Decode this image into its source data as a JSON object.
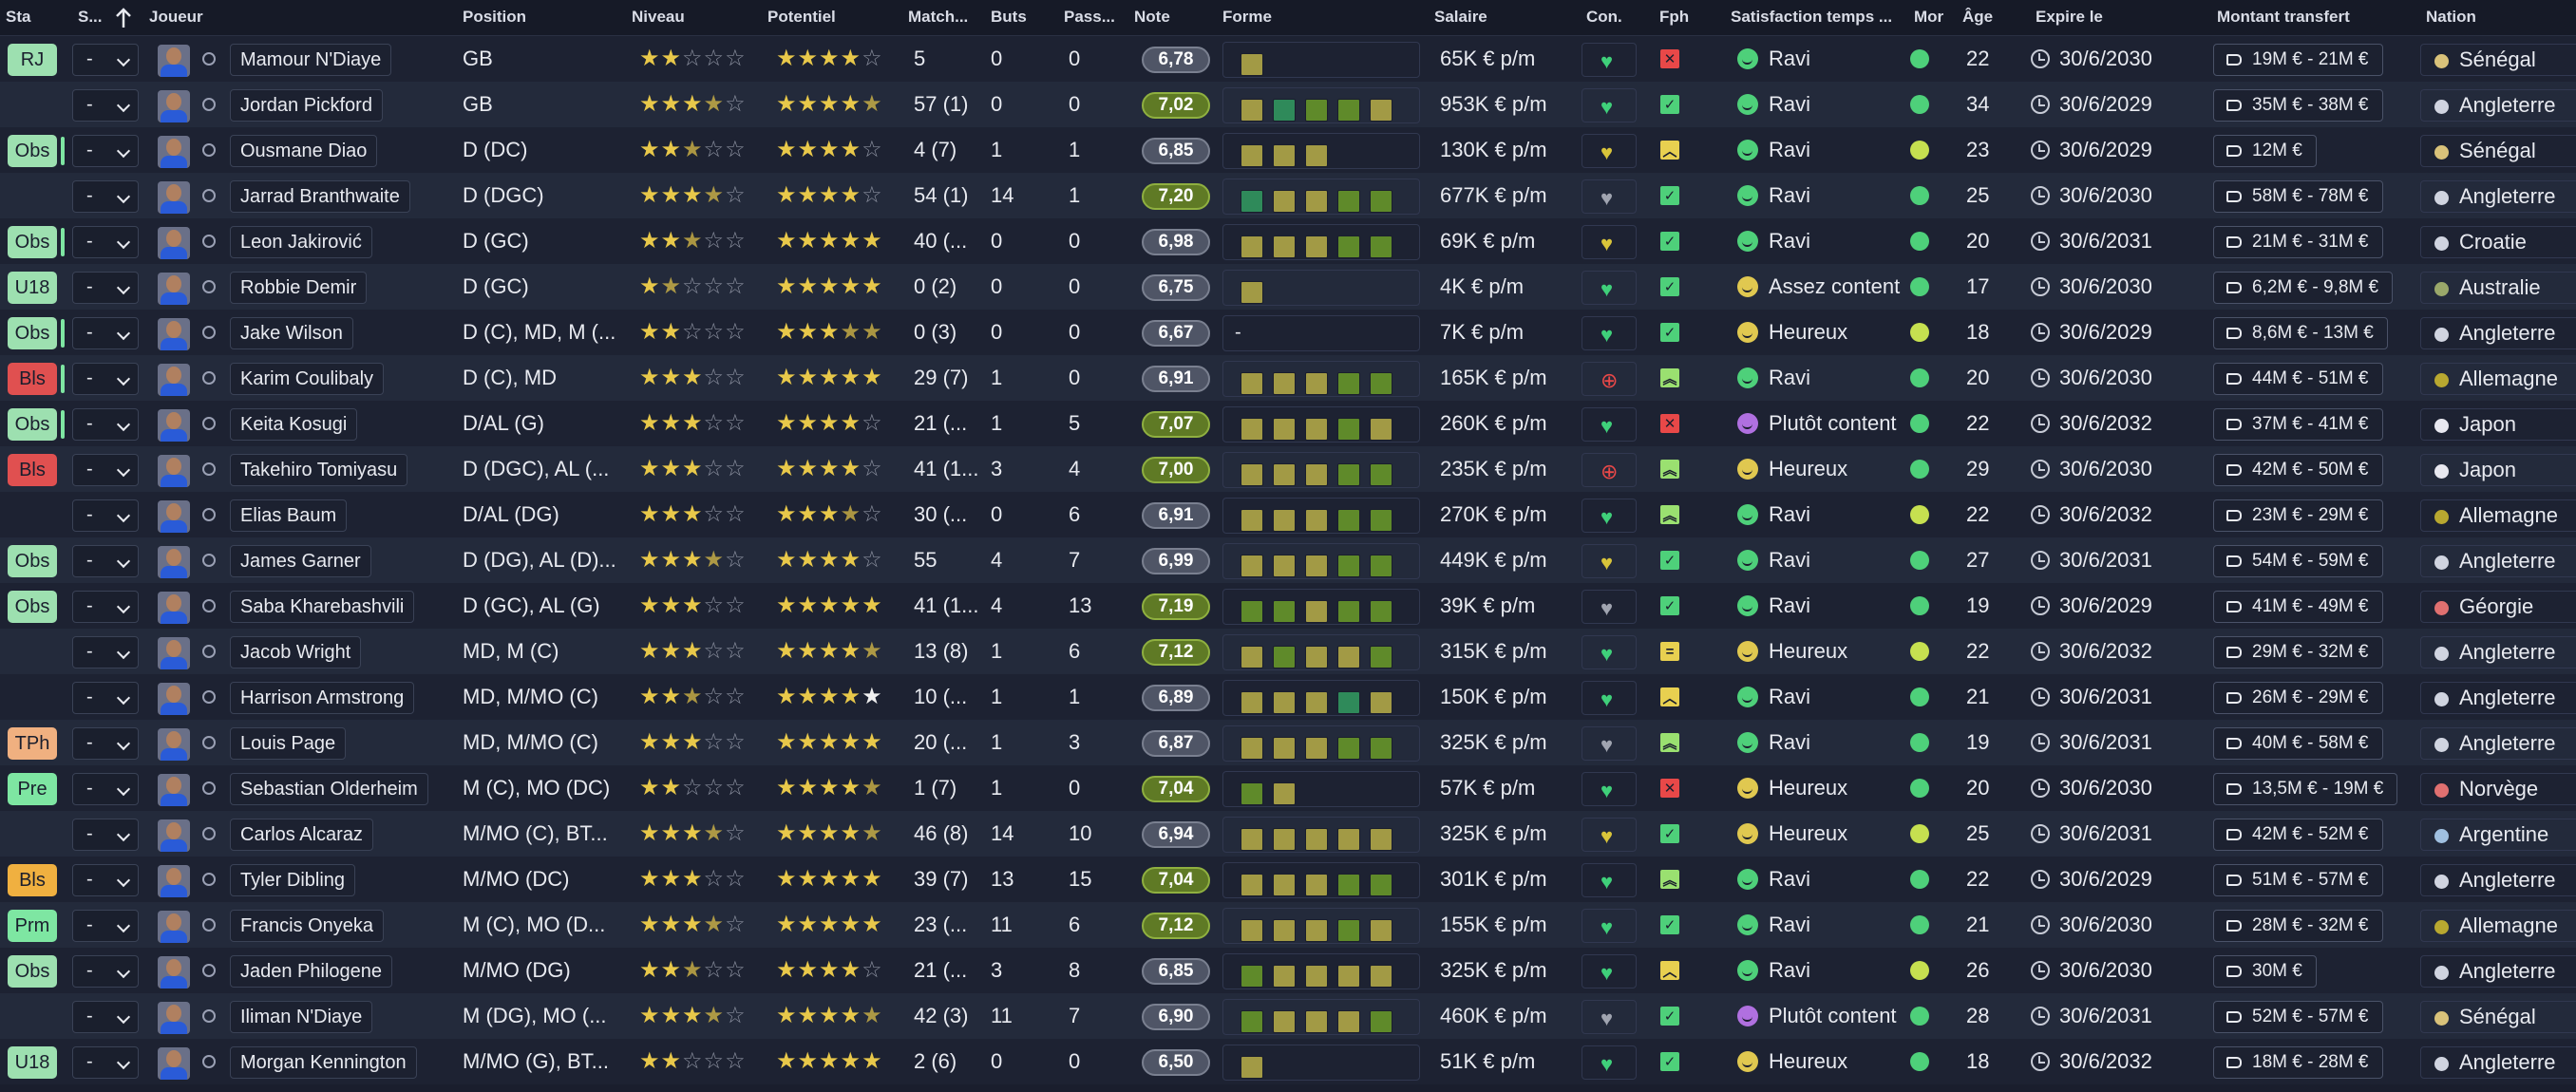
{
  "headers": {
    "sta": "Sta",
    "s": "S...",
    "joueur": "Joueur",
    "position": "Position",
    "niveau": "Niveau",
    "potentiel": "Potentiel",
    "match": "Match...",
    "buts": "Buts",
    "pass": "Pass...",
    "note": "Note",
    "forme": "Forme",
    "salaire": "Salaire",
    "con": "Con.",
    "fph": "Fph",
    "satisfaction": "Satisfaction temps ...",
    "mor": "Mor",
    "age": "Âge",
    "expire": "Expire le",
    "montant": "Montant transfert",
    "nation": "Nation"
  },
  "colors": {
    "sq_green": "#2f8a5a",
    "sq_olive": "#a29a45",
    "sq_lime": "#5f8a2a",
    "note_green": "#5f7a25",
    "note_grey": "#4f5566"
  },
  "players": [
    {
      "status": "RJ",
      "statusColor": "#9de0b0",
      "bar": false,
      "sel": "-",
      "name": "Mamour N'Diaye",
      "position": "GB",
      "niveau": [
        2,
        0,
        3
      ],
      "potentiel": [
        4,
        0,
        1
      ],
      "potW": false,
      "matches": "5",
      "buts": "0",
      "passes": "0",
      "note": "6,78",
      "noteC": "grey",
      "form": [
        "o"
      ],
      "salaire": "65K € p/m",
      "con": "green",
      "fph": "x",
      "sat": "Ravi",
      "satC": "green",
      "mor": "up",
      "age": "22",
      "expire": "30/6/2030",
      "montant": "19M € - 21M €",
      "nation": "Sénégal",
      "flag": "#d9c27a"
    },
    {
      "status": "",
      "statusColor": "",
      "bar": false,
      "sel": "-",
      "name": "Jordan Pickford",
      "position": "GB",
      "niveau": [
        3,
        1,
        1
      ],
      "potentiel": [
        4,
        1,
        0
      ],
      "potW": false,
      "matches": "57 (1)",
      "buts": "0",
      "passes": "0",
      "note": "7,02",
      "noteC": "green",
      "form": [
        "o",
        "g",
        "l",
        "l",
        "o"
      ],
      "salaire": "953K € p/m",
      "con": "green",
      "fph": "ok",
      "sat": "Ravi",
      "satC": "green",
      "mor": "up",
      "age": "34",
      "expire": "30/6/2029",
      "montant": "35M € - 38M €",
      "nation": "Angleterre",
      "flag": "#d0d4e0"
    },
    {
      "status": "Obs",
      "statusColor": "#9de0b0",
      "bar": true,
      "sel": "-",
      "name": "Ousmane Diao",
      "position": "D (DC)",
      "niveau": [
        2,
        1,
        2
      ],
      "potentiel": [
        4,
        0,
        1
      ],
      "potW": false,
      "matches": "4 (7)",
      "buts": "1",
      "passes": "1",
      "note": "6,85",
      "noteC": "grey",
      "form": [
        "o",
        "o",
        "o"
      ],
      "salaire": "130K € p/m",
      "con": "yellow",
      "fph": "up",
      "sat": "Ravi",
      "satC": "green",
      "mor": "flat",
      "age": "23",
      "expire": "30/6/2029",
      "montant": "12M €",
      "nation": "Sénégal",
      "flag": "#d9c27a"
    },
    {
      "status": "",
      "statusColor": "",
      "bar": false,
      "sel": "-",
      "name": "Jarrad Branthwaite",
      "position": "D (DGC)",
      "niveau": [
        3,
        1,
        1
      ],
      "potentiel": [
        4,
        0,
        1
      ],
      "potW": false,
      "matches": "54 (1)",
      "buts": "14",
      "passes": "1",
      "note": "7,20",
      "noteC": "green",
      "form": [
        "g",
        "o",
        "o",
        "l",
        "l"
      ],
      "salaire": "677K € p/m",
      "con": "grey",
      "fph": "ok",
      "sat": "Ravi",
      "satC": "green",
      "mor": "up",
      "age": "25",
      "expire": "30/6/2030",
      "montant": "58M € - 78M €",
      "nation": "Angleterre",
      "flag": "#d0d4e0"
    },
    {
      "status": "Obs",
      "statusColor": "#9de0b0",
      "bar": true,
      "sel": "-",
      "name": "Leon Jakirović",
      "position": "D (GC)",
      "niveau": [
        2,
        1,
        2
      ],
      "potentiel": [
        5,
        0,
        0
      ],
      "potW": true,
      "matches": "40 (...",
      "buts": "0",
      "passes": "0",
      "note": "6,98",
      "noteC": "grey",
      "form": [
        "o",
        "o",
        "o",
        "l",
        "l"
      ],
      "salaire": "69K € p/m",
      "con": "yellow",
      "fph": "ok",
      "sat": "Ravi",
      "satC": "green",
      "mor": "up",
      "age": "20",
      "expire": "30/6/2031",
      "montant": "21M € - 31M €",
      "nation": "Croatie",
      "flag": "#d0d4e0"
    },
    {
      "status": "U18",
      "statusColor": "#9de0b0",
      "bar": false,
      "sel": "-",
      "name": "Robbie Demir",
      "position": "D (GC)",
      "niveau": [
        1,
        1,
        3
      ],
      "potentiel": [
        5,
        0,
        0
      ],
      "potW": true,
      "matches": "0 (2)",
      "buts": "0",
      "passes": "0",
      "note": "6,75",
      "noteC": "grey",
      "form": [
        "o"
      ],
      "salaire": "4K € p/m",
      "con": "green",
      "fph": "ok",
      "sat": "Assez content",
      "satC": "yellow",
      "mor": "up",
      "age": "17",
      "expire": "30/6/2030",
      "montant": "6,2M € - 9,8M €",
      "nation": "Australie",
      "flag": "#9aa86a"
    },
    {
      "status": "Obs",
      "statusColor": "#9de0b0",
      "bar": true,
      "sel": "-",
      "name": "Jake Wilson",
      "position": "D (C), MD, M (...",
      "niveau": [
        2,
        0,
        3
      ],
      "potentiel": [
        3,
        2,
        0
      ],
      "potW": true,
      "matches": "0 (3)",
      "buts": "0",
      "passes": "0",
      "note": "6,67",
      "noteC": "grey",
      "form": [],
      "formDash": "-",
      "salaire": "7K € p/m",
      "con": "green",
      "fph": "ok",
      "sat": "Heureux",
      "satC": "yellow",
      "mor": "flat",
      "age": "18",
      "expire": "30/6/2029",
      "montant": "8,6M € - 13M €",
      "nation": "Angleterre",
      "flag": "#d0d4e0"
    },
    {
      "status": "Bls",
      "statusColor": "#e05050",
      "bar": true,
      "sel": "-",
      "name": "Karim Coulibaly",
      "position": "D (C), MD",
      "niveau": [
        3,
        0,
        2
      ],
      "potentiel": [
        5,
        0,
        0
      ],
      "potW": true,
      "matches": "29 (7)",
      "buts": "1",
      "passes": "0",
      "note": "6,91",
      "noteC": "grey",
      "form": [
        "o",
        "o",
        "o",
        "l",
        "l"
      ],
      "salaire": "165K € p/m",
      "con": "red",
      "fph": "up2",
      "sat": "Ravi",
      "satC": "green",
      "mor": "up",
      "age": "20",
      "expire": "30/6/2030",
      "montant": "44M € - 51M €",
      "nation": "Allemagne",
      "flag": "#b8a830"
    },
    {
      "status": "Obs",
      "statusColor": "#9de0b0",
      "bar": true,
      "sel": "-",
      "name": "Keita Kosugi",
      "position": "D/AL (G)",
      "niveau": [
        3,
        0,
        2
      ],
      "potentiel": [
        4,
        0,
        1
      ],
      "potW": false,
      "matches": "21 (...",
      "buts": "1",
      "passes": "5",
      "note": "7,07",
      "noteC": "green",
      "form": [
        "o",
        "o",
        "o",
        "l",
        "o"
      ],
      "salaire": "260K € p/m",
      "con": "green",
      "fph": "x",
      "sat": "Plutôt content",
      "satC": "purple",
      "mor": "up",
      "age": "22",
      "expire": "30/6/2032",
      "montant": "37M € - 41M €",
      "nation": "Japon",
      "flag": "#e8e8f0"
    },
    {
      "status": "Bls",
      "statusColor": "#e05050",
      "bar": false,
      "sel": "-",
      "name": "Takehiro Tomiyasu",
      "position": "D (DGC), AL (...",
      "niveau": [
        3,
        0,
        2
      ],
      "potentiel": [
        4,
        0,
        1
      ],
      "potW": false,
      "matches": "41 (1...",
      "buts": "3",
      "passes": "4",
      "note": "7,00",
      "noteC": "green",
      "form": [
        "o",
        "o",
        "o",
        "l",
        "l"
      ],
      "salaire": "235K € p/m",
      "con": "red",
      "fph": "up2",
      "sat": "Heureux",
      "satC": "yellow",
      "mor": "up",
      "age": "29",
      "expire": "30/6/2030",
      "montant": "42M € - 50M €",
      "nation": "Japon",
      "flag": "#e8e8f0"
    },
    {
      "status": "",
      "statusColor": "",
      "bar": false,
      "sel": "-",
      "name": "Elias Baum",
      "position": "D/AL (DG)",
      "niveau": [
        3,
        0,
        2
      ],
      "potentiel": [
        3,
        1,
        1
      ],
      "potW": false,
      "matches": "30 (...",
      "buts": "0",
      "passes": "6",
      "note": "6,91",
      "noteC": "grey",
      "form": [
        "o",
        "o",
        "o",
        "l",
        "l"
      ],
      "salaire": "270K € p/m",
      "con": "green",
      "fph": "up2",
      "sat": "Ravi",
      "satC": "green",
      "mor": "flat",
      "age": "22",
      "expire": "30/6/2032",
      "montant": "23M € - 29M €",
      "nation": "Allemagne",
      "flag": "#b8a830"
    },
    {
      "status": "Obs",
      "statusColor": "#9de0b0",
      "bar": false,
      "sel": "-",
      "name": "James Garner",
      "position": "D (DG), AL (D)...",
      "niveau": [
        3,
        1,
        1
      ],
      "potentiel": [
        4,
        0,
        1
      ],
      "potW": false,
      "matches": "55",
      "buts": "4",
      "passes": "7",
      "note": "6,99",
      "noteC": "grey",
      "form": [
        "o",
        "o",
        "o",
        "l",
        "l"
      ],
      "salaire": "449K € p/m",
      "con": "yellow",
      "fph": "ok",
      "sat": "Ravi",
      "satC": "green",
      "mor": "up",
      "age": "27",
      "expire": "30/6/2031",
      "montant": "54M € - 59M €",
      "nation": "Angleterre",
      "flag": "#d0d4e0"
    },
    {
      "status": "Obs",
      "statusColor": "#9de0b0",
      "bar": false,
      "sel": "-",
      "name": "Saba Kharebashvili",
      "position": "D (GC), AL (G)",
      "niveau": [
        3,
        0,
        2
      ],
      "potentiel": [
        5,
        0,
        0
      ],
      "potW": true,
      "matches": "41 (1...",
      "buts": "4",
      "passes": "13",
      "note": "7,19",
      "noteC": "green",
      "form": [
        "l",
        "l",
        "o",
        "l",
        "l"
      ],
      "salaire": "39K € p/m",
      "con": "grey",
      "fph": "ok",
      "sat": "Ravi",
      "satC": "green",
      "mor": "up",
      "age": "19",
      "expire": "30/6/2029",
      "montant": "41M € - 49M €",
      "nation": "Géorgie",
      "flag": "#e07070"
    },
    {
      "status": "",
      "statusColor": "",
      "bar": false,
      "sel": "-",
      "name": "Jacob Wright",
      "position": "MD, M (C)",
      "niveau": [
        3,
        0,
        2
      ],
      "potentiel": [
        4,
        1,
        0
      ],
      "potW": false,
      "matches": "13 (8)",
      "buts": "1",
      "passes": "6",
      "note": "7,12",
      "noteC": "green",
      "form": [
        "o",
        "l",
        "o",
        "o",
        "l"
      ],
      "salaire": "315K € p/m",
      "con": "green",
      "fph": "eq",
      "sat": "Heureux",
      "satC": "yellow",
      "mor": "flat",
      "age": "22",
      "expire": "30/6/2032",
      "montant": "29M € - 32M €",
      "nation": "Angleterre",
      "flag": "#d0d4e0"
    },
    {
      "status": "",
      "statusColor": "",
      "bar": false,
      "sel": "-",
      "name": "Harrison Armstrong",
      "position": "MD, M/MO (C)",
      "niveau": [
        2,
        1,
        2
      ],
      "potentiel": [
        4,
        0,
        1
      ],
      "potW": true,
      "matches": "10 (...",
      "buts": "1",
      "passes": "1",
      "note": "6,89",
      "noteC": "grey",
      "form": [
        "o",
        "o",
        "o",
        "g",
        "o"
      ],
      "salaire": "150K € p/m",
      "con": "green",
      "fph": "up",
      "sat": "Ravi",
      "satC": "green",
      "mor": "up",
      "age": "21",
      "expire": "30/6/2031",
      "montant": "26M € - 29M €",
      "nation": "Angleterre",
      "flag": "#d0d4e0"
    },
    {
      "status": "TPh",
      "statusColor": "#f0b080",
      "bar": false,
      "sel": "-",
      "name": "Louis Page",
      "position": "MD, M/MO (C)",
      "niveau": [
        3,
        0,
        2
      ],
      "potentiel": [
        5,
        0,
        0
      ],
      "potW": true,
      "matches": "20 (...",
      "buts": "1",
      "passes": "3",
      "note": "6,87",
      "noteC": "grey",
      "form": [
        "o",
        "o",
        "o",
        "l",
        "l"
      ],
      "salaire": "325K € p/m",
      "con": "grey",
      "fph": "up2",
      "sat": "Ravi",
      "satC": "green",
      "mor": "up",
      "age": "19",
      "expire": "30/6/2031",
      "montant": "40M € - 58M €",
      "nation": "Angleterre",
      "flag": "#d0d4e0"
    },
    {
      "status": "Pre",
      "statusColor": "#7ee6a2",
      "bar": false,
      "sel": "-",
      "name": "Sebastian Olderheim",
      "position": "M (C), MO (DC)",
      "niveau": [
        2,
        0,
        3
      ],
      "potentiel": [
        4,
        1,
        0
      ],
      "potW": true,
      "matches": "1 (7)",
      "buts": "1",
      "passes": "0",
      "note": "7,04",
      "noteC": "green",
      "form": [
        "l",
        "o"
      ],
      "salaire": "57K € p/m",
      "con": "green",
      "fph": "x",
      "sat": "Heureux",
      "satC": "yellow",
      "mor": "up",
      "age": "20",
      "expire": "30/6/2030",
      "montant": "13,5M € - 19M €",
      "nation": "Norvège",
      "flag": "#e07070"
    },
    {
      "status": "",
      "statusColor": "",
      "bar": false,
      "sel": "-",
      "name": "Carlos Alcaraz",
      "position": "M/MO (C), BT...",
      "niveau": [
        3,
        1,
        1
      ],
      "potentiel": [
        4,
        1,
        0
      ],
      "potW": false,
      "matches": "46 (8)",
      "buts": "14",
      "passes": "10",
      "note": "6,94",
      "noteC": "grey",
      "form": [
        "o",
        "o",
        "o",
        "o",
        "o"
      ],
      "salaire": "325K € p/m",
      "con": "yellow",
      "fph": "ok",
      "sat": "Heureux",
      "satC": "yellow",
      "mor": "flat",
      "age": "25",
      "expire": "30/6/2031",
      "montant": "42M € - 52M €",
      "nation": "Argentine",
      "flag": "#a0c0e0"
    },
    {
      "status": "Bls",
      "statusColor": "#f0b040",
      "bar": false,
      "sel": "-",
      "name": "Tyler Dibling",
      "position": "M/MO (DC)",
      "niveau": [
        3,
        0,
        2
      ],
      "potentiel": [
        5,
        0,
        0
      ],
      "potW": false,
      "matches": "39 (7)",
      "buts": "13",
      "passes": "15",
      "note": "7,04",
      "noteC": "green",
      "form": [
        "o",
        "o",
        "o",
        "l",
        "l"
      ],
      "salaire": "301K € p/m",
      "con": "green",
      "fph": "up2",
      "sat": "Ravi",
      "satC": "green",
      "mor": "up",
      "age": "22",
      "expire": "30/6/2029",
      "montant": "51M € - 57M €",
      "nation": "Angleterre",
      "flag": "#d0d4e0"
    },
    {
      "status": "Prm",
      "statusColor": "#7ee6a2",
      "bar": false,
      "sel": "-",
      "name": "Francis Onyeka",
      "position": "M (C), MO (D...",
      "niveau": [
        3,
        1,
        1
      ],
      "potentiel": [
        5,
        0,
        0
      ],
      "potW": true,
      "matches": "23 (...",
      "buts": "11",
      "passes": "6",
      "note": "7,12",
      "noteC": "green",
      "form": [
        "o",
        "o",
        "o",
        "l",
        "o"
      ],
      "salaire": "155K € p/m",
      "con": "green",
      "fph": "ok",
      "sat": "Ravi",
      "satC": "green",
      "mor": "up",
      "age": "21",
      "expire": "30/6/2030",
      "montant": "28M € - 32M €",
      "nation": "Allemagne",
      "flag": "#b8a830"
    },
    {
      "status": "Obs",
      "statusColor": "#9de0b0",
      "bar": false,
      "sel": "-",
      "name": "Jaden Philogene",
      "position": "M/MO (DG)",
      "niveau": [
        2,
        1,
        2
      ],
      "potentiel": [
        4,
        0,
        1
      ],
      "potW": false,
      "matches": "21 (...",
      "buts": "3",
      "passes": "8",
      "note": "6,85",
      "noteC": "grey",
      "form": [
        "l",
        "o",
        "o",
        "o",
        "o"
      ],
      "salaire": "325K € p/m",
      "con": "green",
      "fph": "up",
      "sat": "Ravi",
      "satC": "green",
      "mor": "flat",
      "age": "26",
      "expire": "30/6/2030",
      "montant": "30M €",
      "nation": "Angleterre",
      "flag": "#d0d4e0"
    },
    {
      "status": "",
      "statusColor": "",
      "bar": false,
      "sel": "-",
      "name": "Iliman N'Diaye",
      "position": "M (DG), MO (...",
      "niveau": [
        3,
        1,
        1
      ],
      "potentiel": [
        4,
        1,
        0
      ],
      "potW": false,
      "matches": "42 (3)",
      "buts": "11",
      "passes": "7",
      "note": "6,90",
      "noteC": "grey",
      "form": [
        "l",
        "o",
        "o",
        "o",
        "l"
      ],
      "salaire": "460K € p/m",
      "con": "grey",
      "fph": "ok",
      "sat": "Plutôt content",
      "satC": "purple",
      "mor": "up",
      "age": "28",
      "expire": "30/6/2031",
      "montant": "52M € - 57M €",
      "nation": "Sénégal",
      "flag": "#d9c27a"
    },
    {
      "status": "U18",
      "statusColor": "#9de0b0",
      "bar": false,
      "sel": "-",
      "name": "Morgan Kennington",
      "position": "M/MO (G), BT...",
      "niveau": [
        2,
        0,
        3
      ],
      "potentiel": [
        5,
        0,
        0
      ],
      "potW": false,
      "matches": "2 (6)",
      "buts": "0",
      "passes": "0",
      "note": "6,50",
      "noteC": "grey",
      "form": [
        "o"
      ],
      "salaire": "51K € p/m",
      "con": "green",
      "fph": "ok",
      "sat": "Heureux",
      "satC": "yellow",
      "mor": "up",
      "age": "18",
      "expire": "30/6/2032",
      "montant": "18M € - 28M €",
      "nation": "Angleterre",
      "flag": "#d0d4e0"
    }
  ]
}
